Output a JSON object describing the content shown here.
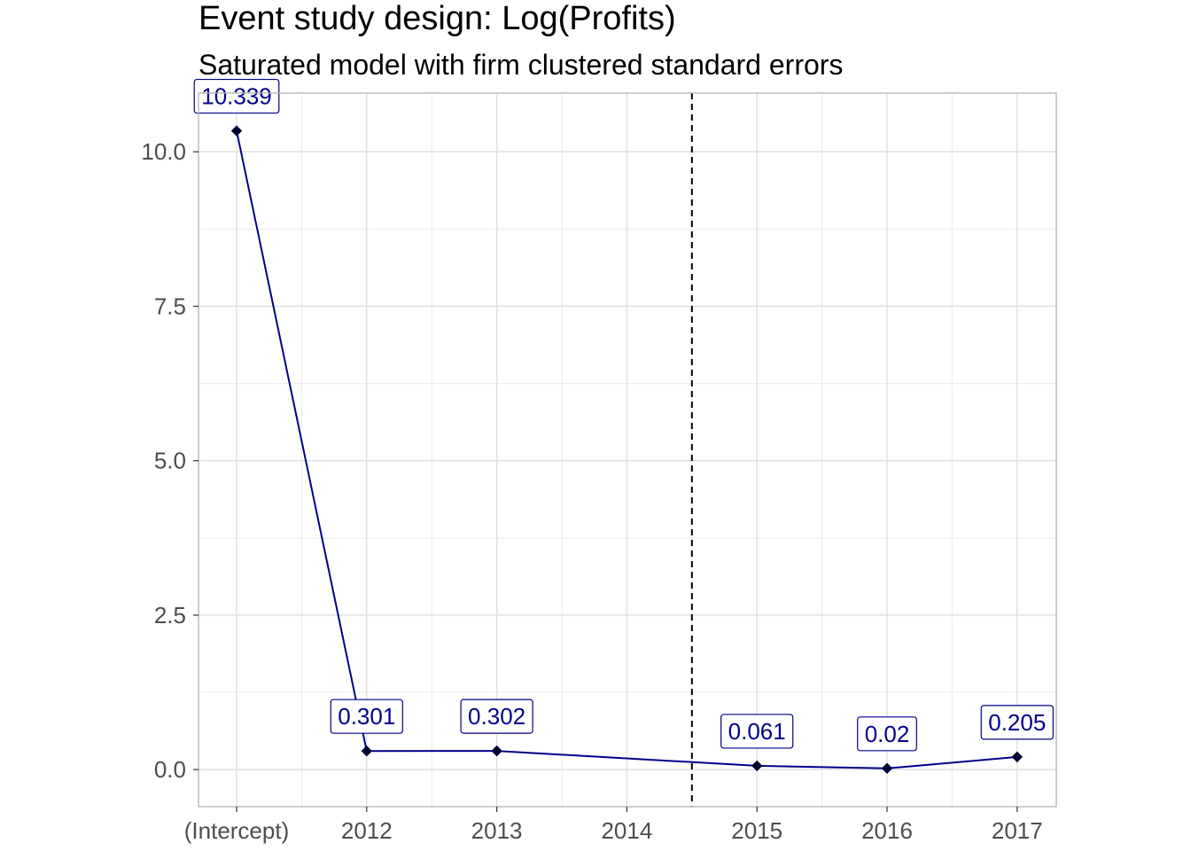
{
  "chart_data": {
    "type": "line",
    "title": "Event study design: Log(Profits)",
    "subtitle": "Saturated model with firm clustered standard errors",
    "xlabel": "",
    "ylabel": "",
    "categories": [
      "(Intercept)",
      "2012",
      "2013",
      "2014",
      "2015",
      "2016",
      "2017"
    ],
    "points": [
      {
        "x": "(Intercept)",
        "y": 10.339,
        "label": "10.339"
      },
      {
        "x": "2012",
        "y": 0.301,
        "label": "0.301"
      },
      {
        "x": "2013",
        "y": 0.302,
        "label": "0.302"
      },
      {
        "x": "2015",
        "y": 0.061,
        "label": "0.061"
      },
      {
        "x": "2016",
        "y": 0.02,
        "label": "0.02"
      },
      {
        "x": "2017",
        "y": 0.205,
        "label": "0.205"
      }
    ],
    "yticks": [
      "0.0",
      "2.5",
      "5.0",
      "7.5",
      "10.0"
    ],
    "ylim": [
      -0.6,
      10.95
    ],
    "vline_between": [
      "2014",
      "2015"
    ],
    "grid": true,
    "legend": "none",
    "colors": {
      "line": "#00008B",
      "point": "#000033",
      "label_text": "#00008B",
      "vline": "#000000"
    }
  }
}
